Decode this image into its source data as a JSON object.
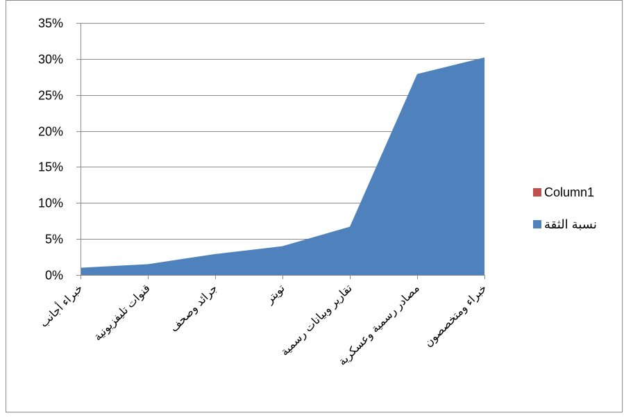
{
  "chart_data": {
    "type": "area",
    "categories": [
      "خبراء أجانب",
      "قنوات تليفزيونية",
      "جرائد وصحف",
      "تويتر",
      "تقارير وبيانات رسمية",
      "مصادر رسمية وعسكرية",
      "خبراء ومتخصصون"
    ],
    "series": [
      {
        "name": "Column1",
        "values": [
          null,
          null,
          null,
          null,
          null,
          null,
          null
        ],
        "color": "#c0504d"
      },
      {
        "name": "نسبة الثقة",
        "values": [
          0.01,
          0.015,
          0.029,
          0.04,
          0.067,
          0.279,
          0.302
        ],
        "color": "#4f81bd"
      }
    ],
    "ylim": [
      0,
      0.35
    ],
    "yticks": [
      "0%",
      "5%",
      "10%",
      "15%",
      "20%",
      "25%",
      "30%",
      "35%"
    ],
    "grid": true,
    "legend_position": "right",
    "title": "",
    "xlabel": "",
    "ylabel": ""
  }
}
